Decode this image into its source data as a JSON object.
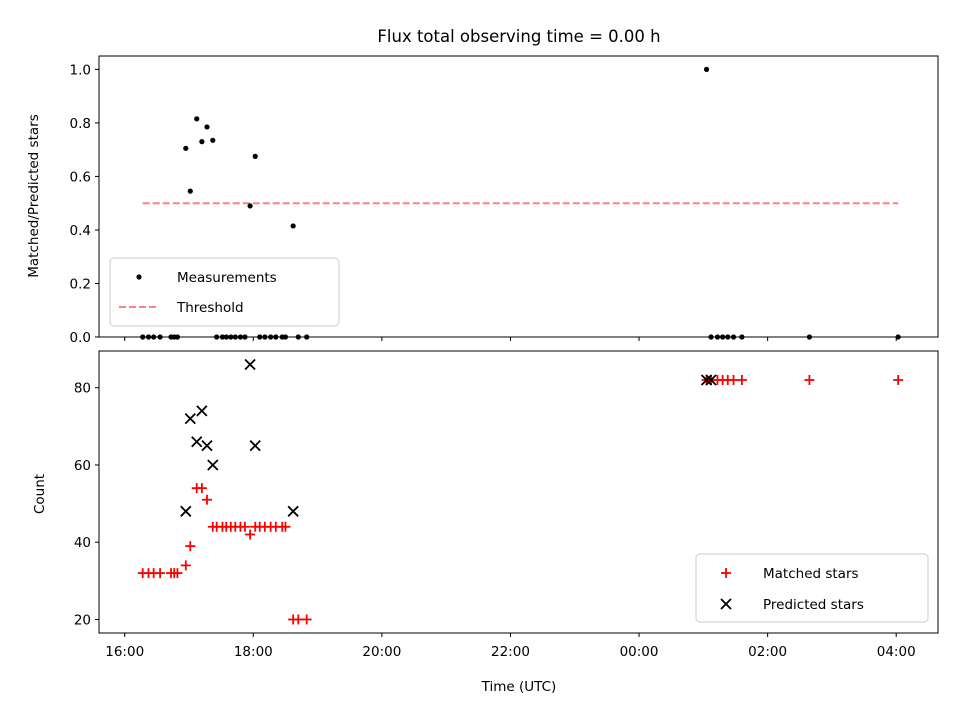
{
  "chart_data": [
    {
      "type": "scatter",
      "title": "Flux total observing time = 0.00 h",
      "xlabel": "",
      "ylabel": "Matched/Predicted stars",
      "xlim_hours": [
        15.6,
        28.65
      ],
      "ylim": [
        0.0,
        1.05
      ],
      "yticks": [
        0.0,
        0.2,
        0.4,
        0.6,
        0.8,
        1.0
      ],
      "ytick_labels": [
        "0.0",
        "0.2",
        "0.4",
        "0.6",
        "0.8",
        "1.0"
      ],
      "legend_position": "lower-left",
      "colors": {
        "measurements": "#000000",
        "threshold": "#ff8080"
      },
      "series": [
        {
          "name": "Measurements",
          "marker": "dot",
          "points": [
            [
              16.28,
              0.0
            ],
            [
              16.37,
              0.0
            ],
            [
              16.45,
              0.0
            ],
            [
              16.55,
              0.0
            ],
            [
              16.72,
              0.0
            ],
            [
              16.77,
              0.0
            ],
            [
              16.82,
              0.0
            ],
            [
              16.95,
              0.705
            ],
            [
              17.02,
              0.545
            ],
            [
              17.12,
              0.815
            ],
            [
              17.2,
              0.73
            ],
            [
              17.28,
              0.785
            ],
            [
              17.37,
              0.735
            ],
            [
              17.43,
              0.0
            ],
            [
              17.52,
              0.0
            ],
            [
              17.58,
              0.0
            ],
            [
              17.65,
              0.0
            ],
            [
              17.72,
              0.0
            ],
            [
              17.8,
              0.0
            ],
            [
              17.87,
              0.0
            ],
            [
              17.95,
              0.49
            ],
            [
              18.03,
              0.675
            ],
            [
              18.1,
              0.0
            ],
            [
              18.18,
              0.0
            ],
            [
              18.27,
              0.0
            ],
            [
              18.35,
              0.0
            ],
            [
              18.45,
              0.0
            ],
            [
              18.5,
              0.0
            ],
            [
              18.62,
              0.415
            ],
            [
              18.7,
              0.0
            ],
            [
              18.83,
              0.0
            ],
            [
              25.05,
              1.0
            ],
            [
              25.12,
              0.0
            ],
            [
              25.22,
              0.0
            ],
            [
              25.3,
              0.0
            ],
            [
              25.38,
              0.0
            ],
            [
              25.47,
              0.0
            ],
            [
              25.6,
              0.0
            ],
            [
              26.65,
              0.0
            ],
            [
              28.03,
              0.0
            ]
          ]
        },
        {
          "name": "Threshold",
          "marker": "dashed-line",
          "points": [
            [
              16.28,
              0.5
            ],
            [
              28.03,
              0.5
            ]
          ]
        }
      ]
    },
    {
      "type": "scatter",
      "title": "",
      "xlabel": "Time (UTC)",
      "ylabel": "Count",
      "xlim_hours": [
        15.6,
        28.65
      ],
      "ylim": [
        16.5,
        89.5
      ],
      "xticks_hours": [
        16,
        18,
        20,
        22,
        24,
        26,
        28
      ],
      "xtick_labels": [
        "16:00",
        "18:00",
        "20:00",
        "22:00",
        "00:00",
        "02:00",
        "04:00"
      ],
      "yticks": [
        20,
        40,
        60,
        80
      ],
      "ytick_labels": [
        "20",
        "40",
        "60",
        "80"
      ],
      "legend_position": "lower-right",
      "colors": {
        "matched": "#ff0000",
        "predicted": "#000000"
      },
      "series": [
        {
          "name": "Matched stars",
          "marker": "plus",
          "points": [
            [
              16.28,
              32
            ],
            [
              16.37,
              32
            ],
            [
              16.45,
              32
            ],
            [
              16.55,
              32
            ],
            [
              16.72,
              32
            ],
            [
              16.77,
              32
            ],
            [
              16.82,
              32
            ],
            [
              16.95,
              34
            ],
            [
              17.02,
              39
            ],
            [
              17.12,
              54
            ],
            [
              17.2,
              54
            ],
            [
              17.28,
              51
            ],
            [
              17.37,
              44
            ],
            [
              17.43,
              44
            ],
            [
              17.52,
              44
            ],
            [
              17.58,
              44
            ],
            [
              17.65,
              44
            ],
            [
              17.72,
              44
            ],
            [
              17.8,
              44
            ],
            [
              17.87,
              44
            ],
            [
              17.95,
              42
            ],
            [
              18.03,
              44
            ],
            [
              18.1,
              44
            ],
            [
              18.18,
              44
            ],
            [
              18.27,
              44
            ],
            [
              18.35,
              44
            ],
            [
              18.45,
              44
            ],
            [
              18.5,
              44
            ],
            [
              18.62,
              20
            ],
            [
              18.7,
              20
            ],
            [
              18.83,
              20
            ],
            [
              25.05,
              82
            ],
            [
              25.12,
              82
            ],
            [
              25.22,
              82
            ],
            [
              25.3,
              82
            ],
            [
              25.38,
              82
            ],
            [
              25.47,
              82
            ],
            [
              25.6,
              82
            ],
            [
              26.65,
              82
            ],
            [
              28.03,
              82
            ]
          ]
        },
        {
          "name": "Predicted stars",
          "marker": "x",
          "points": [
            [
              16.95,
              48
            ],
            [
              17.02,
              72
            ],
            [
              17.12,
              66
            ],
            [
              17.2,
              74
            ],
            [
              17.28,
              65
            ],
            [
              17.37,
              60
            ],
            [
              17.95,
              86
            ],
            [
              18.03,
              65
            ],
            [
              18.62,
              48
            ],
            [
              25.05,
              82
            ],
            [
              25.12,
              82
            ]
          ]
        }
      ]
    }
  ]
}
